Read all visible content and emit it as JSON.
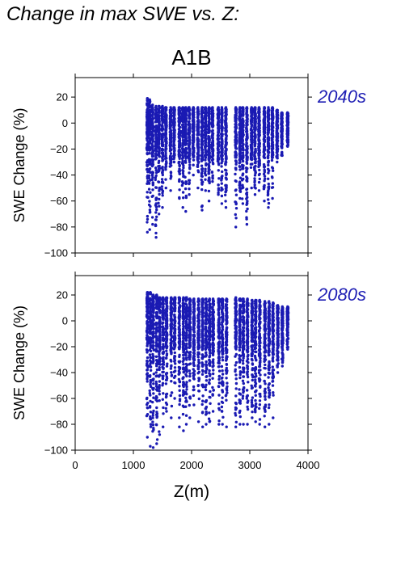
{
  "page": {
    "title": "Change in max SWE vs. Z:",
    "scenario": "A1B"
  },
  "colors": {
    "points": "#1a1ab3",
    "period_label": "#1e1eb4",
    "axes": "#000000"
  },
  "chart_data": [
    {
      "type": "scatter",
      "period_label": "2040s",
      "ylabel": "SWE Change (%)",
      "xlabel": "",
      "xlim": [
        0,
        4000
      ],
      "ylim": [
        -100,
        35
      ],
      "xticks": [
        0,
        1000,
        2000,
        3000,
        4000
      ],
      "yticks": [
        -100,
        -80,
        -60,
        -40,
        -20,
        0,
        20
      ],
      "ytick_labels": [
        "−100",
        "−80",
        "−60",
        "−40",
        "−20",
        "0",
        "20"
      ],
      "show_x_tick_labels": false,
      "grid": false,
      "elevation_bands": [
        {
          "x": 1240,
          "ymin": -84,
          "ymax": 19
        },
        {
          "x": 1280,
          "ymin": -82,
          "ymax": 18
        },
        {
          "x": 1330,
          "ymin": -78,
          "ymax": 14
        },
        {
          "x": 1390,
          "ymin": -88,
          "ymax": 13
        },
        {
          "x": 1440,
          "ymin": -70,
          "ymax": 13
        },
        {
          "x": 1500,
          "ymin": -65,
          "ymax": 13
        },
        {
          "x": 1560,
          "ymin": -50,
          "ymax": 12
        },
        {
          "x": 1640,
          "ymin": -52,
          "ymax": 12
        },
        {
          "x": 1700,
          "ymin": -30,
          "ymax": 12
        },
        {
          "x": 1790,
          "ymin": -58,
          "ymax": 12
        },
        {
          "x": 1850,
          "ymin": -65,
          "ymax": 12
        },
        {
          "x": 1900,
          "ymin": -68,
          "ymax": 12
        },
        {
          "x": 1960,
          "ymin": -55,
          "ymax": 12
        },
        {
          "x": 2030,
          "ymin": -40,
          "ymax": 12
        },
        {
          "x": 2110,
          "ymin": -50,
          "ymax": 12
        },
        {
          "x": 2180,
          "ymin": -67,
          "ymax": 12
        },
        {
          "x": 2240,
          "ymin": -52,
          "ymax": 12
        },
        {
          "x": 2300,
          "ymin": -60,
          "ymax": 12
        },
        {
          "x": 2360,
          "ymin": -45,
          "ymax": 12
        },
        {
          "x": 2460,
          "ymin": -55,
          "ymax": 12
        },
        {
          "x": 2520,
          "ymin": -62,
          "ymax": 12
        },
        {
          "x": 2590,
          "ymin": -65,
          "ymax": 12
        },
        {
          "x": 2760,
          "ymin": -80,
          "ymax": 12
        },
        {
          "x": 2830,
          "ymin": -58,
          "ymax": 12
        },
        {
          "x": 2880,
          "ymin": -62,
          "ymax": 12
        },
        {
          "x": 2950,
          "ymin": -78,
          "ymax": 12
        },
        {
          "x": 3030,
          "ymin": -50,
          "ymax": 12
        },
        {
          "x": 3090,
          "ymin": -55,
          "ymax": 12
        },
        {
          "x": 3160,
          "ymin": -52,
          "ymax": 12
        },
        {
          "x": 3250,
          "ymin": -60,
          "ymax": 12
        },
        {
          "x": 3320,
          "ymin": -65,
          "ymax": 12
        },
        {
          "x": 3390,
          "ymin": -58,
          "ymax": 12
        },
        {
          "x": 3470,
          "ymin": -30,
          "ymax": 10
        },
        {
          "x": 3550,
          "ymin": -25,
          "ymax": 8
        },
        {
          "x": 3650,
          "ymin": -18,
          "ymax": 8
        }
      ]
    },
    {
      "type": "scatter",
      "period_label": "2080s",
      "ylabel": "SWE Change (%)",
      "xlabel": "Z(m)",
      "xlim": [
        0,
        4000
      ],
      "ylim": [
        -100,
        35
      ],
      "xticks": [
        0,
        1000,
        2000,
        3000,
        4000
      ],
      "xtick_labels": [
        "0",
        "1000",
        "2000",
        "3000",
        "4000"
      ],
      "yticks": [
        -100,
        -80,
        -60,
        -40,
        -20,
        0,
        20
      ],
      "ytick_labels": [
        "−100",
        "−80",
        "−60",
        "−40",
        "−20",
        "0",
        "20"
      ],
      "show_x_tick_labels": true,
      "grid": false,
      "elevation_bands": [
        {
          "x": 1240,
          "ymin": -90,
          "ymax": 22
        },
        {
          "x": 1290,
          "ymin": -97,
          "ymax": 22
        },
        {
          "x": 1340,
          "ymin": -98,
          "ymax": 20
        },
        {
          "x": 1400,
          "ymin": -95,
          "ymax": 20
        },
        {
          "x": 1450,
          "ymin": -88,
          "ymax": 18
        },
        {
          "x": 1510,
          "ymin": -82,
          "ymax": 18
        },
        {
          "x": 1570,
          "ymin": -70,
          "ymax": 18
        },
        {
          "x": 1650,
          "ymin": -75,
          "ymax": 18
        },
        {
          "x": 1710,
          "ymin": -60,
          "ymax": 18
        },
        {
          "x": 1790,
          "ymin": -82,
          "ymax": 18
        },
        {
          "x": 1860,
          "ymin": -85,
          "ymax": 18
        },
        {
          "x": 1910,
          "ymin": -80,
          "ymax": 18
        },
        {
          "x": 1970,
          "ymin": -75,
          "ymax": 17
        },
        {
          "x": 2040,
          "ymin": -65,
          "ymax": 17
        },
        {
          "x": 2120,
          "ymin": -78,
          "ymax": 17
        },
        {
          "x": 2190,
          "ymin": -82,
          "ymax": 17
        },
        {
          "x": 2250,
          "ymin": -80,
          "ymax": 17
        },
        {
          "x": 2310,
          "ymin": -78,
          "ymax": 17
        },
        {
          "x": 2370,
          "ymin": -70,
          "ymax": 17
        },
        {
          "x": 2470,
          "ymin": -80,
          "ymax": 17
        },
        {
          "x": 2530,
          "ymin": -80,
          "ymax": 17
        },
        {
          "x": 2600,
          "ymin": -82,
          "ymax": 17
        },
        {
          "x": 2760,
          "ymin": -82,
          "ymax": 18
        },
        {
          "x": 2830,
          "ymin": -80,
          "ymax": 17
        },
        {
          "x": 2890,
          "ymin": -80,
          "ymax": 17
        },
        {
          "x": 2960,
          "ymin": -80,
          "ymax": 17
        },
        {
          "x": 3040,
          "ymin": -75,
          "ymax": 16
        },
        {
          "x": 3100,
          "ymin": -78,
          "ymax": 16
        },
        {
          "x": 3170,
          "ymin": -80,
          "ymax": 16
        },
        {
          "x": 3260,
          "ymin": -82,
          "ymax": 15
        },
        {
          "x": 3330,
          "ymin": -80,
          "ymax": 15
        },
        {
          "x": 3400,
          "ymin": -75,
          "ymax": 14
        },
        {
          "x": 3480,
          "ymin": -40,
          "ymax": 12
        },
        {
          "x": 3560,
          "ymin": -35,
          "ymax": 11
        },
        {
          "x": 3650,
          "ymin": -22,
          "ymax": 11
        }
      ]
    }
  ]
}
